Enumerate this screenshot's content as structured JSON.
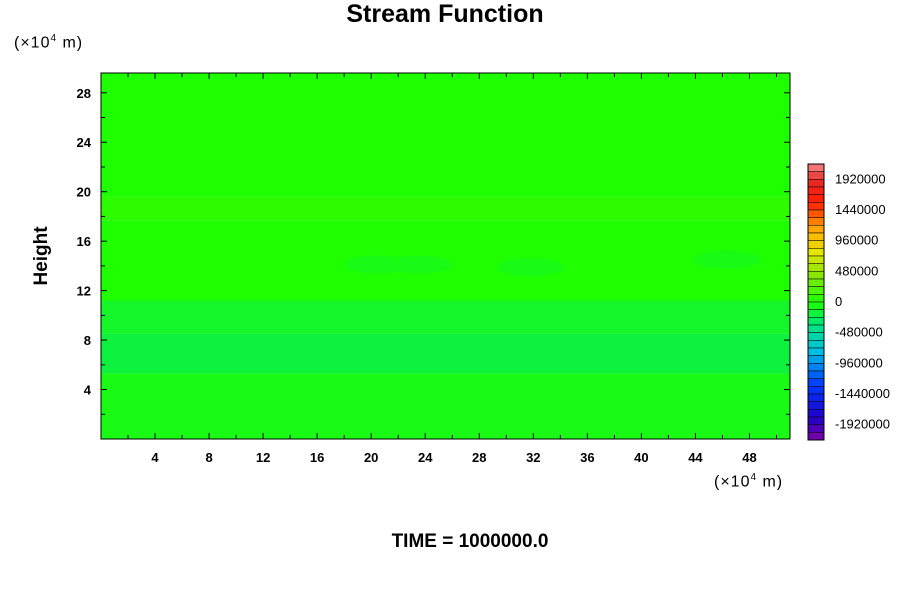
{
  "chart_data": {
    "type": "heatmap",
    "title": "Stream Function",
    "ylabel": "Height",
    "xlabel": "",
    "y_unit_prefix": "(×10",
    "y_unit_exp": "4",
    "y_unit_suffix": " m)",
    "x_unit_prefix": "(×10",
    "x_unit_exp": "4",
    "x_unit_suffix": " m)",
    "xlim": [
      0,
      51
    ],
    "ylim": [
      0,
      29.6
    ],
    "x_ticks": [
      4,
      8,
      12,
      16,
      20,
      24,
      28,
      32,
      36,
      40,
      44,
      48
    ],
    "y_ticks": [
      4,
      8,
      12,
      16,
      20,
      24,
      28
    ],
    "time_label": "TIME = 1000000.0",
    "colorbar": {
      "range": [
        -2160000,
        2160000
      ],
      "step": 120000,
      "tick_labels": [
        "1920000",
        "1440000",
        "960000",
        "480000",
        "0",
        "-480000",
        "-960000",
        "-1440000",
        "-1920000"
      ],
      "tick_values": [
        1920000,
        1440000,
        960000,
        480000,
        0,
        -480000,
        -960000,
        -1440000,
        -1920000
      ]
    },
    "field_bands": [
      {
        "y_min": 0,
        "y_max": 5.3,
        "value": -60000
      },
      {
        "y_min": 5.3,
        "y_max": 8.5,
        "value": -180000
      },
      {
        "y_min": 8.5,
        "y_max": 11.2,
        "value": -120000
      },
      {
        "y_min": 11.2,
        "y_max": 17.7,
        "value": 0
      },
      {
        "y_min": 17.7,
        "y_max": 19.6,
        "value": 60000
      },
      {
        "y_min": 19.6,
        "y_max": 29.6,
        "value": 0
      }
    ],
    "field_blobs": [
      {
        "x": 20.5,
        "y": 14.1,
        "value": -60000
      },
      {
        "x": 23.5,
        "y": 14.1,
        "value": -60000
      },
      {
        "x": 31.8,
        "y": 13.9,
        "value": -60000
      },
      {
        "x": 46.3,
        "y": 14.5,
        "value": -60000
      }
    ]
  }
}
